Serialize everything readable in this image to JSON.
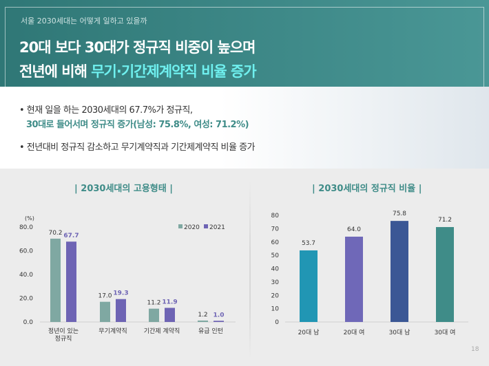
{
  "header": {
    "subtitle": "서울 2030세대는 어떻게 일하고 있을까",
    "title_line1": "20대 보다 30대가 정규직 비중이 높으며",
    "title_line2_prefix": "전년에 비해 ",
    "title_line2_highlight": "무기·기간제계약직 비율 증가"
  },
  "bullets": {
    "b1_line1": "• 현재 일을 하는 2030세대의 67.7%가 정규직,",
    "b1_line2": "30대로 들어서며 정규직 증가(남성: 75.8%, 여성: 71.2%)",
    "b2": "• 전년대비 정규직 감소하고 무기계약직과 기간제계약직 비율 증가"
  },
  "page_number": "18",
  "colors": {
    "teal": "#3f8c88",
    "s2020": "#7fa8a2",
    "s2021": "#6e64b4"
  },
  "chart_data": [
    {
      "type": "bar",
      "title": "| 2030세대의 고용형태 |",
      "ylabel": "(%)",
      "ylim": [
        0,
        80
      ],
      "yticks": [
        "0.0",
        "20.0",
        "40.0",
        "60.0",
        "80.0"
      ],
      "legend": "top-right",
      "categories": [
        "정년이 있는|정규직",
        "무기계약직",
        "기간제 계약직",
        "유급 인턴"
      ],
      "series": [
        {
          "name": "2020",
          "values": [
            70.2,
            17.0,
            11.2,
            1.2
          ],
          "color": "#7fa8a2"
        },
        {
          "name": "2021",
          "values": [
            67.7,
            19.3,
            11.9,
            1.0
          ],
          "color": "#6e64b4"
        }
      ]
    },
    {
      "type": "bar",
      "title": "| 2030세대의 정규직 비율 |",
      "ylim": [
        0,
        80
      ],
      "yticks": [
        "0",
        "10",
        "20",
        "30",
        "40",
        "50",
        "60",
        "70",
        "80"
      ],
      "categories": [
        "20대 남",
        "20대 여",
        "30대 남",
        "30대 여"
      ],
      "values": [
        53.7,
        64.0,
        75.8,
        71.2
      ],
      "colors": [
        "#2196b4",
        "#6f68b8",
        "#3b5795",
        "#3f8c88"
      ]
    }
  ]
}
